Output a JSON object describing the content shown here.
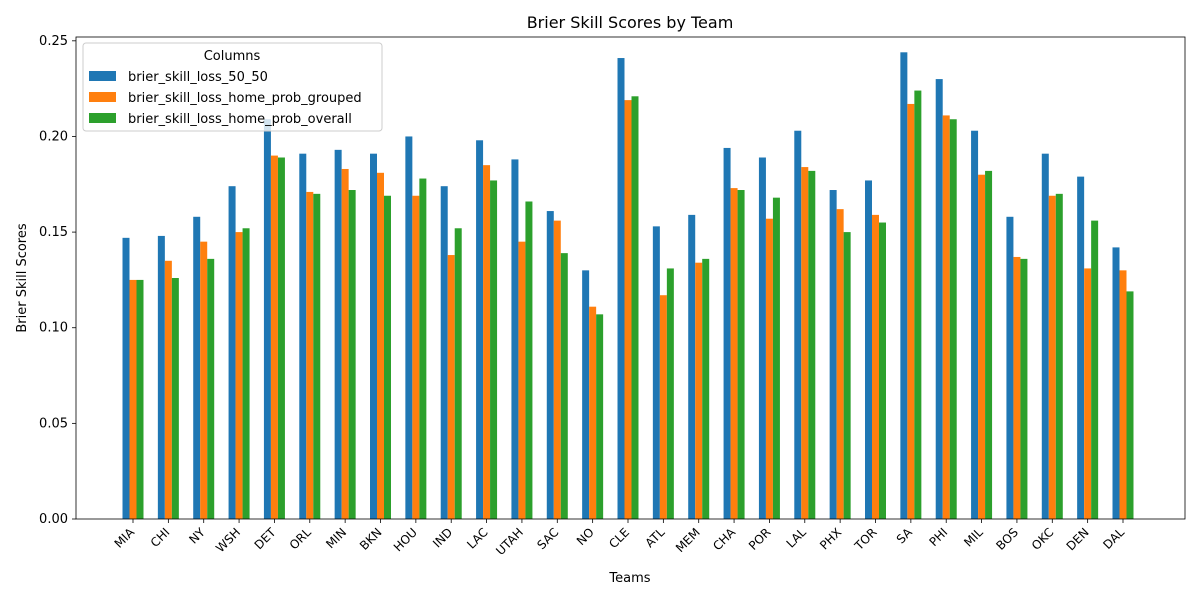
{
  "chart_data": {
    "type": "bar",
    "title": "Brier Skill Scores by Team",
    "xlabel": "Teams",
    "ylabel": "Brier Skill Scores",
    "ylim": [
      0,
      0.252
    ],
    "yticks": [
      "0.00",
      "0.05",
      "0.10",
      "0.15",
      "0.20",
      "0.25"
    ],
    "grid": false,
    "legend_title": "Columns",
    "legend_position": "top-left",
    "categories": [
      "MIA",
      "CHI",
      "NY",
      "WSH",
      "DET",
      "ORL",
      "MIN",
      "BKN",
      "HOU",
      "IND",
      "LAC",
      "UTAH",
      "SAC",
      "NO",
      "CLE",
      "ATL",
      "MEM",
      "CHA",
      "POR",
      "LAL",
      "PHX",
      "TOR",
      "SA",
      "PHI",
      "MIL",
      "BOS",
      "OKC",
      "DEN",
      "DAL"
    ],
    "series": [
      {
        "name": "brier_skill_loss_50_50",
        "color": "#1f77b4",
        "values": [
          0.147,
          0.148,
          0.158,
          0.174,
          0.209,
          0.191,
          0.193,
          0.191,
          0.2,
          0.174,
          0.198,
          0.188,
          0.161,
          0.13,
          0.241,
          0.153,
          0.159,
          0.194,
          0.189,
          0.203,
          0.172,
          0.177,
          0.244,
          0.23,
          0.203,
          0.158,
          0.191,
          0.179,
          0.142
        ]
      },
      {
        "name": "brier_skill_loss_home_prob_grouped",
        "color": "#ff7f0e",
        "values": [
          0.125,
          0.135,
          0.145,
          0.15,
          0.19,
          0.171,
          0.183,
          0.181,
          0.169,
          0.138,
          0.185,
          0.145,
          0.156,
          0.111,
          0.219,
          0.117,
          0.134,
          0.173,
          0.157,
          0.184,
          0.162,
          0.159,
          0.217,
          0.211,
          0.18,
          0.137,
          0.169,
          0.131,
          0.13
        ]
      },
      {
        "name": "brier_skill_loss_home_prob_overall",
        "color": "#2ca02c",
        "values": [
          0.125,
          0.126,
          0.136,
          0.152,
          0.189,
          0.17,
          0.172,
          0.169,
          0.178,
          0.152,
          0.177,
          0.166,
          0.139,
          0.107,
          0.221,
          0.131,
          0.136,
          0.172,
          0.168,
          0.182,
          0.15,
          0.155,
          0.224,
          0.209,
          0.182,
          0.136,
          0.17,
          0.156,
          0.119
        ]
      }
    ]
  }
}
